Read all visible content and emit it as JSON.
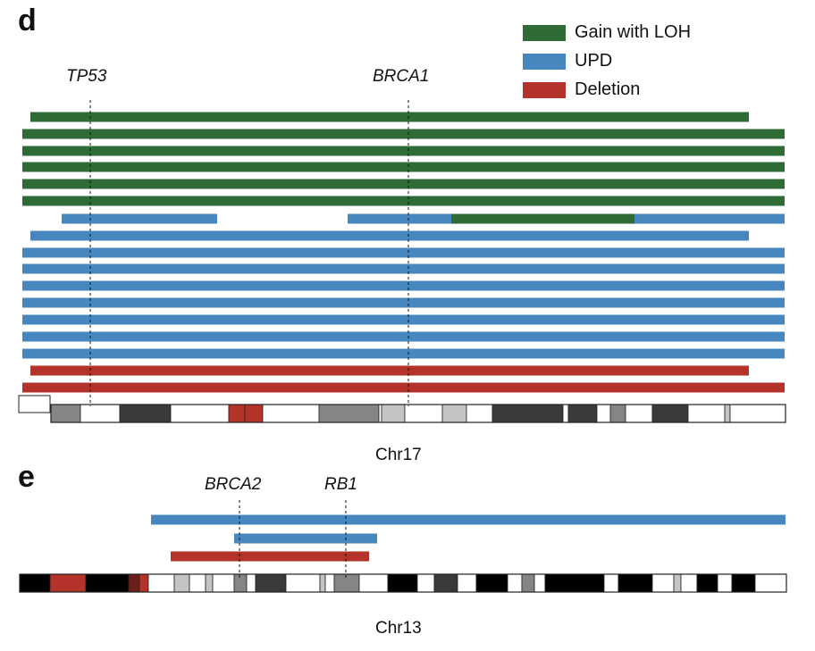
{
  "panel_d": {
    "letter": "d",
    "genes": [
      "TP53",
      "BRCA1"
    ],
    "chromosome_label": "Chr17",
    "legend": [
      {
        "label": "Gain with LOH",
        "color": "#2e6b35"
      },
      {
        "label": "UPD",
        "color": "#4787bf"
      },
      {
        "label": "Deletion",
        "color": "#b3322a"
      }
    ]
  },
  "panel_e": {
    "letter": "e",
    "genes": [
      "BRCA2",
      "RB1"
    ],
    "chromosome_label": "Chr13"
  },
  "colors": {
    "gain_loh": "#2e6b35",
    "upd": "#4787bf",
    "deletion": "#b3322a",
    "band_black": "#000000",
    "band_dark": "#3a3a3a",
    "band_mid": "#858585",
    "band_light": "#c4c4c4",
    "band_centromere": "#b3322a"
  }
}
